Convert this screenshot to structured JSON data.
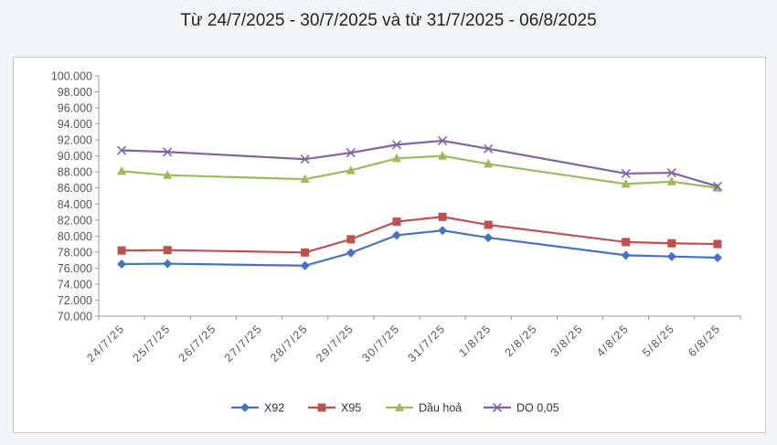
{
  "title": "Từ 24/7/2025 - 30/7/2025 và từ 31/7/2025 - 06/8/2025",
  "chart_data": {
    "type": "line",
    "categories": [
      "24/7/25",
      "25/7/25",
      "26/7/25",
      "27/7/25",
      "28/7/25",
      "29/7/25",
      "30/7/25",
      "31/7/25",
      "1/8/25",
      "2/8/25",
      "3/8/25",
      "4/8/25",
      "5/8/25",
      "6/8/25"
    ],
    "ylim": [
      70000,
      100000
    ],
    "yticks": [
      "70.000",
      "72.000",
      "74.000",
      "76.000",
      "78.000",
      "80.000",
      "82.000",
      "84.000",
      "86.000",
      "88.000",
      "90.000",
      "92.000",
      "94.000",
      "96.000",
      "98.000",
      "100.000"
    ],
    "grid": false,
    "legend": "bottom",
    "series": [
      {
        "name": "X92",
        "color": "#4472c4",
        "marker": "diamond",
        "values": [
          76500,
          76550,
          null,
          null,
          76300,
          77900,
          80100,
          80700,
          79800,
          null,
          null,
          77600,
          77450,
          77300
        ]
      },
      {
        "name": "X95",
        "color": "#c0504d",
        "marker": "square",
        "values": [
          78200,
          78250,
          null,
          null,
          77950,
          79600,
          81800,
          82400,
          81400,
          null,
          null,
          79250,
          79100,
          79000
        ]
      },
      {
        "name": "Dầu hoả",
        "color": "#9bbb59",
        "marker": "triangle",
        "values": [
          88100,
          87600,
          null,
          null,
          87100,
          88200,
          89700,
          90000,
          89000,
          null,
          null,
          86500,
          86800,
          86000
        ]
      },
      {
        "name": "DO 0,05",
        "color": "#8064a2",
        "marker": "x",
        "values": [
          90700,
          90500,
          null,
          null,
          89600,
          90400,
          91400,
          91900,
          90900,
          null,
          null,
          87800,
          87900,
          86200
        ]
      }
    ]
  }
}
